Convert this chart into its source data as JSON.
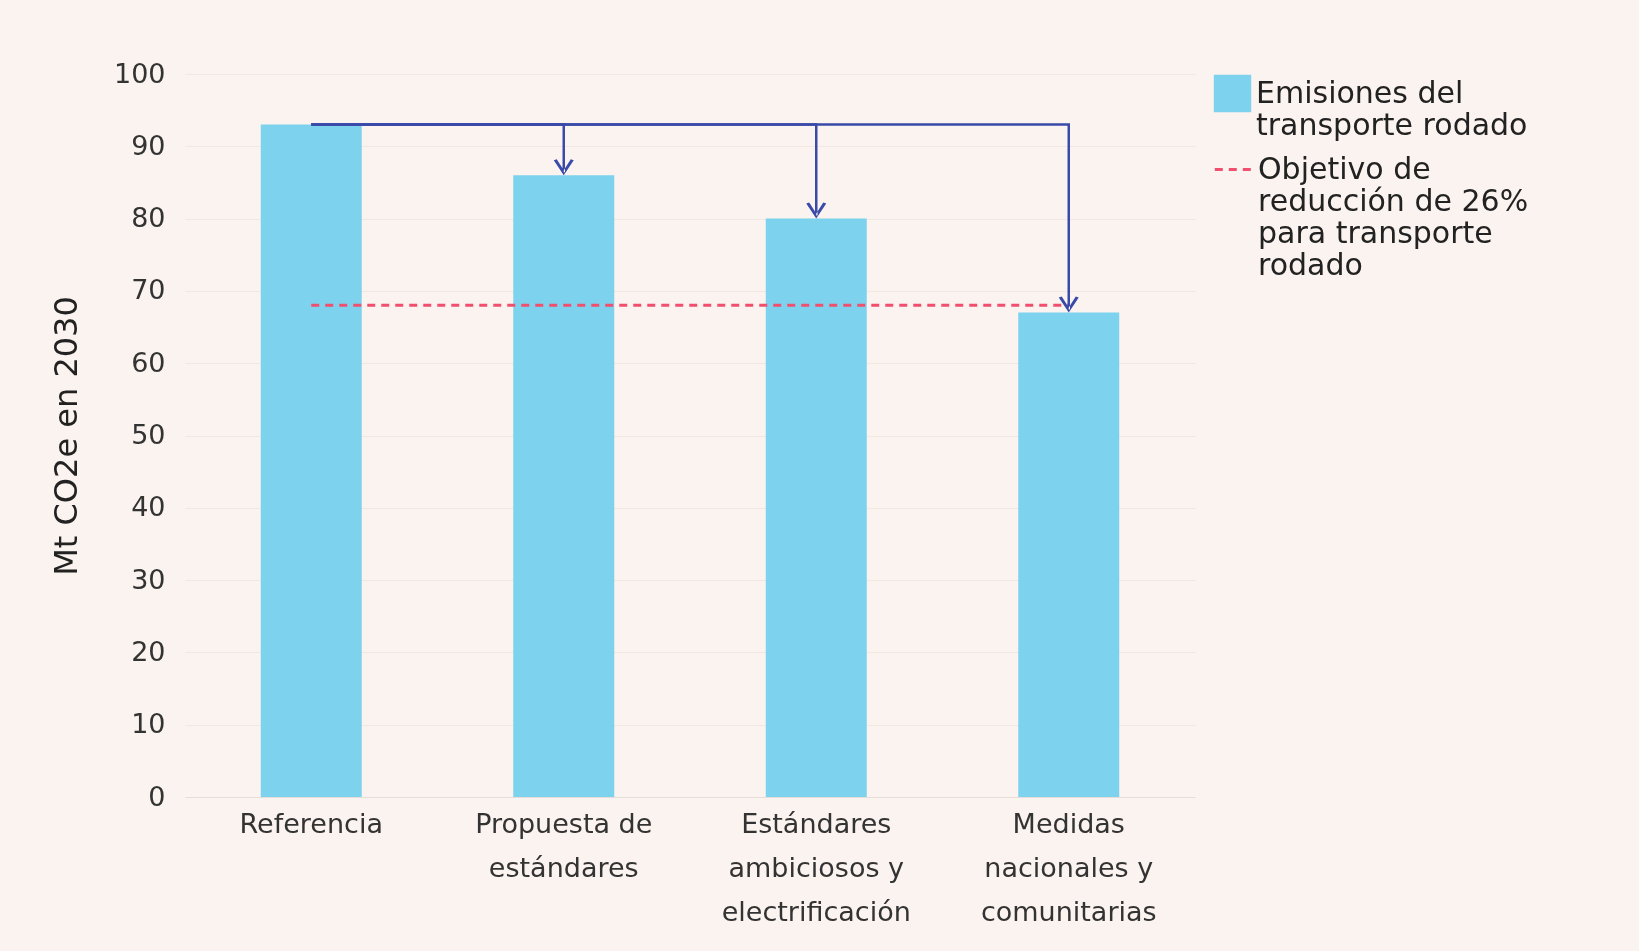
{
  "chart_data": {
    "type": "bar",
    "ylabel": "Mt CO2e en 2030",
    "categories": [
      "Referencia",
      "Propuesta de estándares",
      "Estándares ambiciosos y electrificación",
      "Medidas nacionales y comunitarias"
    ],
    "series": [
      {
        "name": "Emisiones del transporte rodado",
        "color": "#7dd3ee",
        "values": [
          93,
          86,
          80,
          67
        ]
      }
    ],
    "ylim": [
      0,
      100
    ],
    "yticks": [
      0,
      10,
      20,
      30,
      40,
      50,
      60,
      70,
      80,
      90,
      100
    ],
    "grid": "y",
    "legend": "right",
    "ref_lines": [
      {
        "axis": "y",
        "value": 68,
        "label": "Objetivo de reducción de 26% para transporte rodado",
        "color": "#f0506e",
        "line_style": "dashed"
      }
    ]
  }
}
